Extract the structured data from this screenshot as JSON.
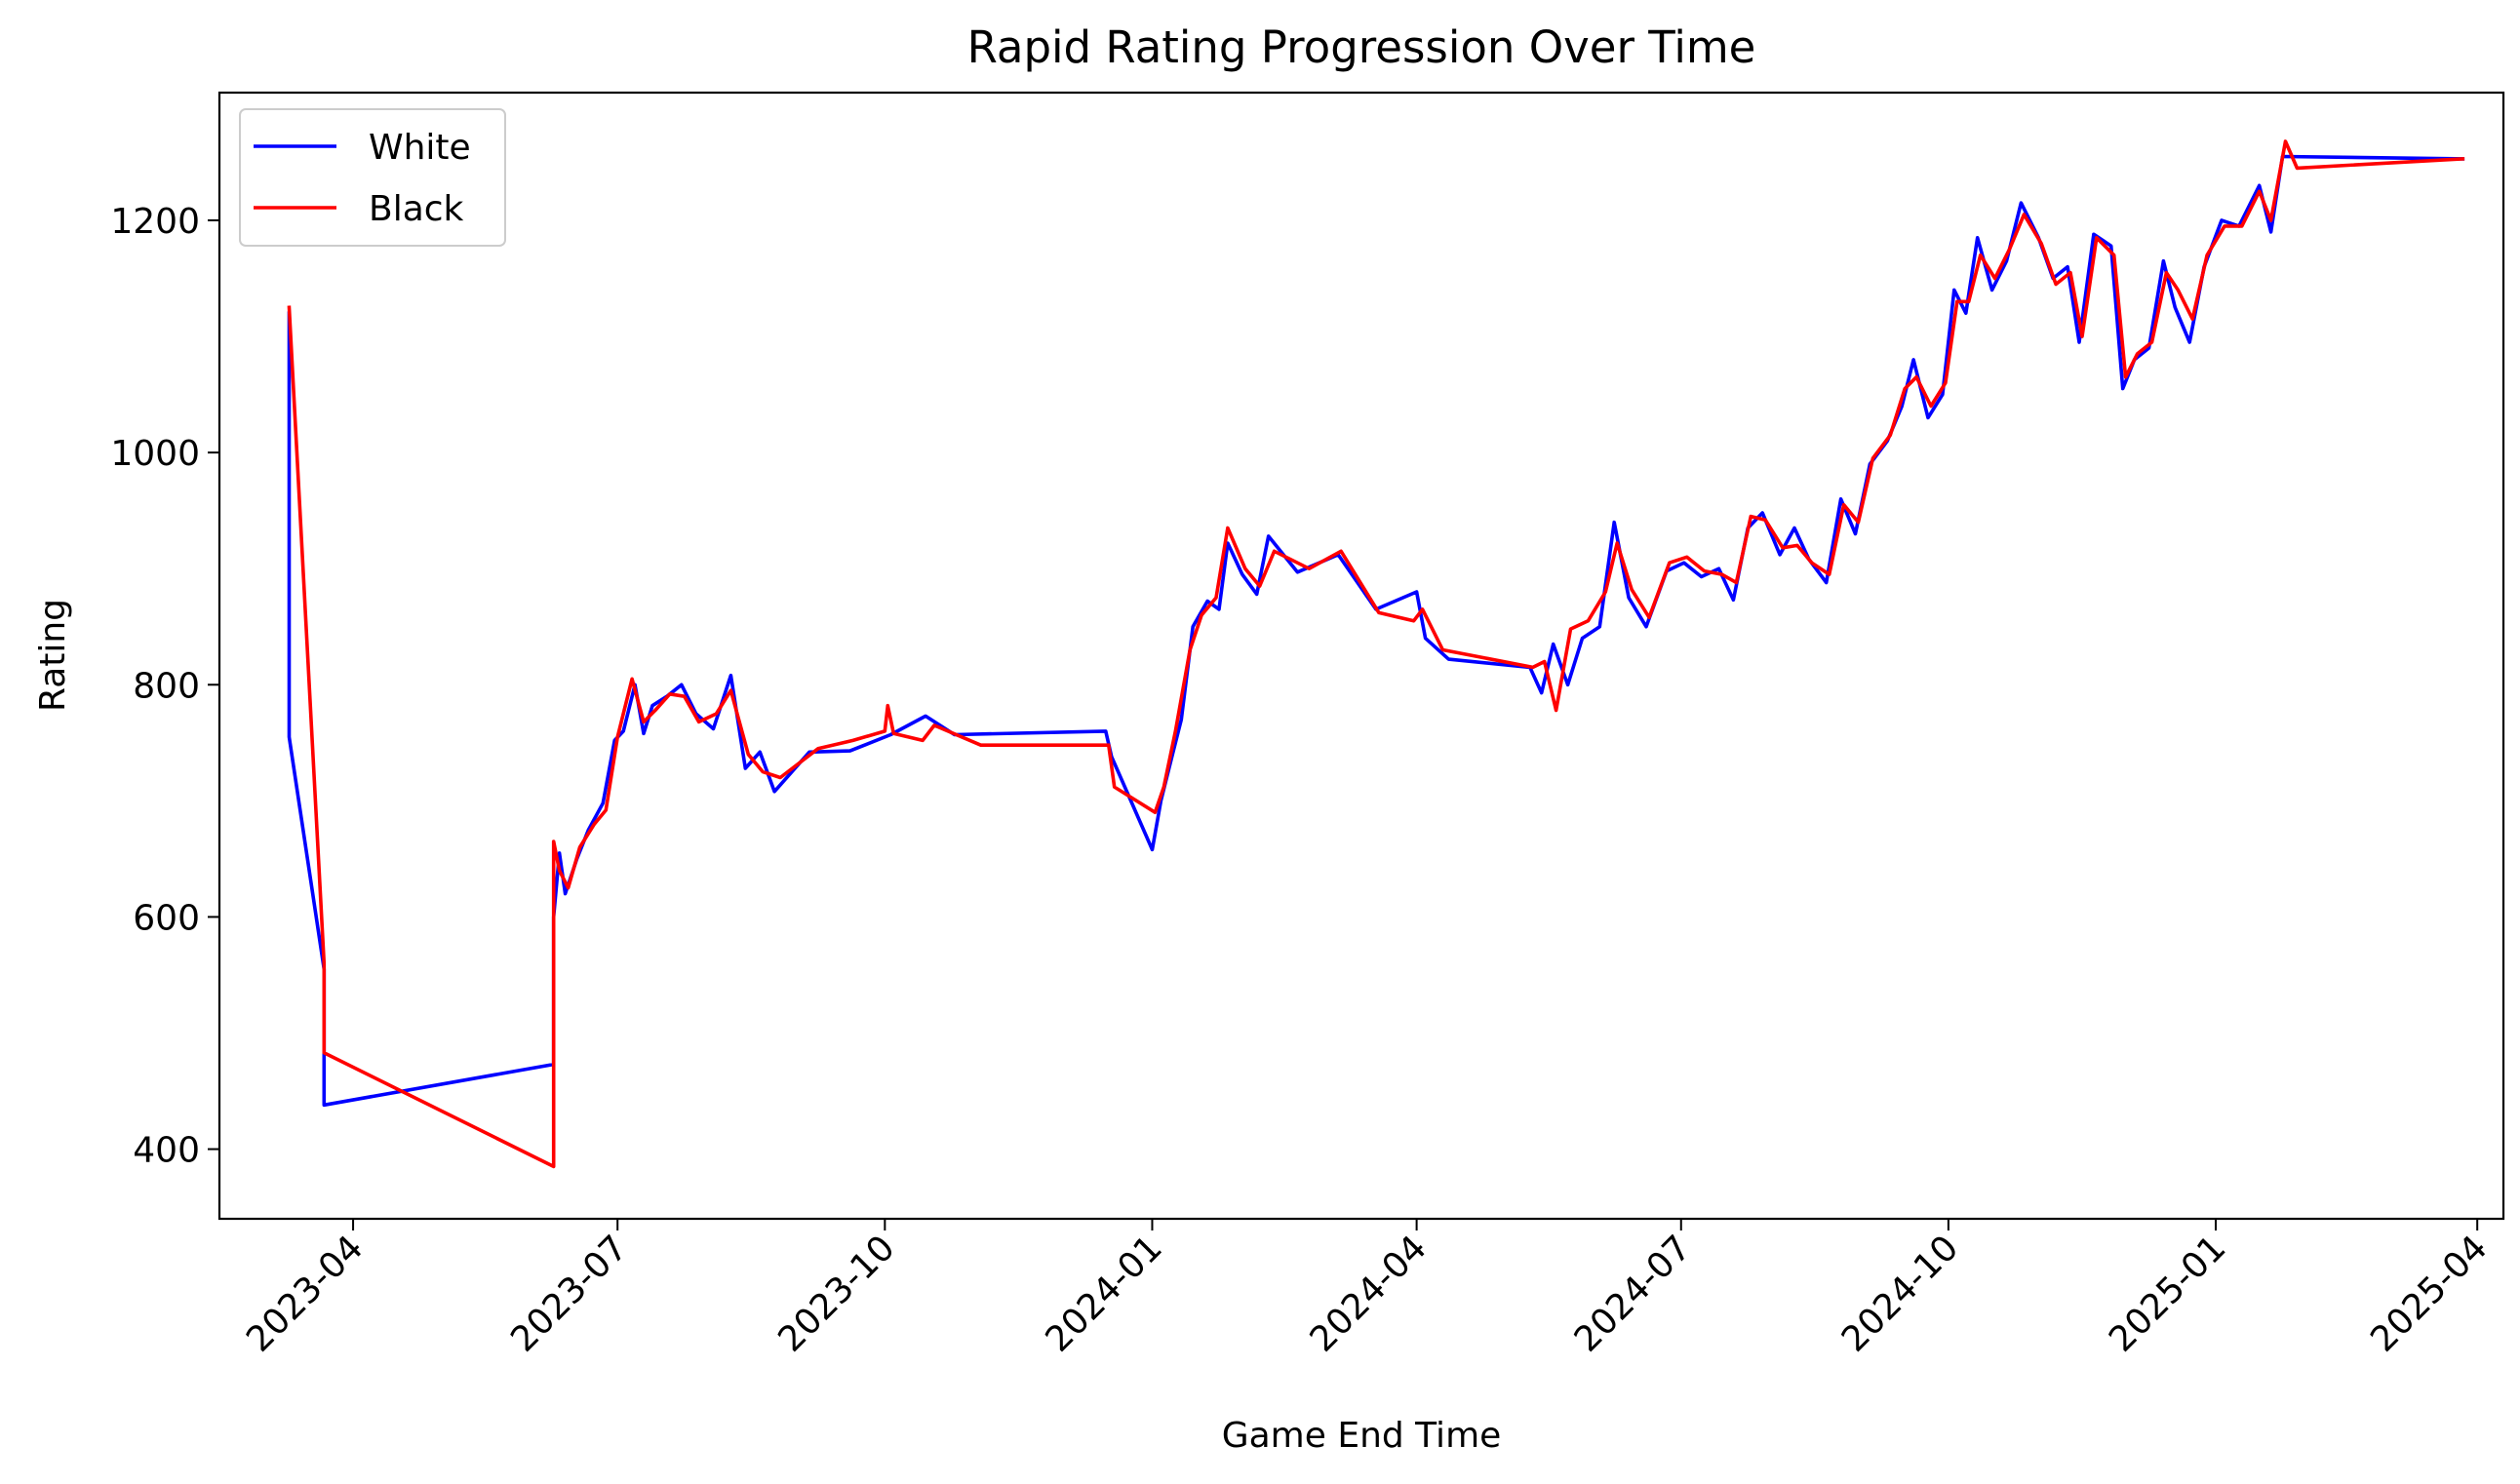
{
  "chart_data": {
    "type": "line",
    "title": "Rapid Rating Progression Over Time",
    "xlabel": "Game End Time",
    "ylabel": "Rating",
    "x_ticks": [
      "2023-04",
      "2023-07",
      "2023-10",
      "2024-01",
      "2024-04",
      "2024-07",
      "2024-10",
      "2025-01",
      "2025-04"
    ],
    "y_ticks": [
      400,
      600,
      800,
      1000,
      1200
    ],
    "xlim": [
      "2023-02-14",
      "2025-04-10"
    ],
    "ylim": [
      340,
      1310
    ],
    "grid": false,
    "legend": "upper left",
    "series": [
      {
        "name": "White",
        "color": "#0000ff",
        "points": [
          [
            "2023-03-10",
            1120
          ],
          [
            "2023-03-10",
            755
          ],
          [
            "2023-03-22",
            555
          ],
          [
            "2023-03-22",
            438
          ],
          [
            "2023-06-09",
            473
          ],
          [
            "2023-06-09",
            600
          ],
          [
            "2023-06-11",
            655
          ],
          [
            "2023-06-13",
            620
          ],
          [
            "2023-06-17",
            650
          ],
          [
            "2023-06-21",
            675
          ],
          [
            "2023-06-26",
            698
          ],
          [
            "2023-06-30",
            752
          ],
          [
            "2023-07-03",
            760
          ],
          [
            "2023-07-07",
            800
          ],
          [
            "2023-07-10",
            758
          ],
          [
            "2023-07-13",
            782
          ],
          [
            "2023-07-18",
            790
          ],
          [
            "2023-07-23",
            800
          ],
          [
            "2023-07-28",
            775
          ],
          [
            "2023-08-03",
            762
          ],
          [
            "2023-08-09",
            808
          ],
          [
            "2023-08-14",
            728
          ],
          [
            "2023-08-19",
            742
          ],
          [
            "2023-08-24",
            708
          ],
          [
            "2023-09-05",
            742
          ],
          [
            "2023-09-19",
            743
          ],
          [
            "2023-10-03",
            757
          ],
          [
            "2023-10-15",
            773
          ],
          [
            "2023-10-25",
            757
          ],
          [
            "2023-12-16",
            760
          ],
          [
            "2023-12-18",
            738
          ],
          [
            "2024-01-01",
            658
          ],
          [
            "2024-01-04",
            700
          ],
          [
            "2024-01-08",
            740
          ],
          [
            "2024-01-11",
            770
          ],
          [
            "2024-01-15",
            850
          ],
          [
            "2024-01-20",
            872
          ],
          [
            "2024-01-24",
            865
          ],
          [
            "2024-01-27",
            922
          ],
          [
            "2024-02-01",
            895
          ],
          [
            "2024-02-06",
            878
          ],
          [
            "2024-02-10",
            928
          ],
          [
            "2024-02-20",
            897
          ],
          [
            "2024-03-05",
            912
          ],
          [
            "2024-03-18",
            865
          ],
          [
            "2024-04-01",
            880
          ],
          [
            "2024-04-04",
            840
          ],
          [
            "2024-04-12",
            822
          ],
          [
            "2024-05-10",
            815
          ],
          [
            "2024-05-14",
            793
          ],
          [
            "2024-05-18",
            835
          ],
          [
            "2024-05-23",
            800
          ],
          [
            "2024-05-28",
            840
          ],
          [
            "2024-06-03",
            850
          ],
          [
            "2024-06-08",
            940
          ],
          [
            "2024-06-13",
            875
          ],
          [
            "2024-06-19",
            850
          ],
          [
            "2024-06-26",
            898
          ],
          [
            "2024-07-02",
            905
          ],
          [
            "2024-07-08",
            893
          ],
          [
            "2024-07-14",
            900
          ],
          [
            "2024-07-19",
            873
          ],
          [
            "2024-07-24",
            935
          ],
          [
            "2024-07-29",
            948
          ],
          [
            "2024-08-04",
            912
          ],
          [
            "2024-08-09",
            935
          ],
          [
            "2024-08-14",
            908
          ],
          [
            "2024-08-20",
            888
          ],
          [
            "2024-08-25",
            960
          ],
          [
            "2024-08-30",
            930
          ],
          [
            "2024-09-04",
            990
          ],
          [
            "2024-09-10",
            1010
          ],
          [
            "2024-09-15",
            1040
          ],
          [
            "2024-09-19",
            1080
          ],
          [
            "2024-09-24",
            1030
          ],
          [
            "2024-09-29",
            1050
          ],
          [
            "2024-10-03",
            1140
          ],
          [
            "2024-10-07",
            1120
          ],
          [
            "2024-10-11",
            1185
          ],
          [
            "2024-10-16",
            1140
          ],
          [
            "2024-10-21",
            1165
          ],
          [
            "2024-10-26",
            1215
          ],
          [
            "2024-11-01",
            1185
          ],
          [
            "2024-11-06",
            1150
          ],
          [
            "2024-11-11",
            1160
          ],
          [
            "2024-11-15",
            1095
          ],
          [
            "2024-11-20",
            1188
          ],
          [
            "2024-11-26",
            1178
          ],
          [
            "2024-11-30",
            1055
          ],
          [
            "2024-12-04",
            1080
          ],
          [
            "2024-12-09",
            1090
          ],
          [
            "2024-12-14",
            1165
          ],
          [
            "2024-12-18",
            1125
          ],
          [
            "2024-12-23",
            1095
          ],
          [
            "2024-12-28",
            1160
          ],
          [
            "2025-01-03",
            1200
          ],
          [
            "2025-01-09",
            1195
          ],
          [
            "2025-01-16",
            1230
          ],
          [
            "2025-01-20",
            1190
          ],
          [
            "2025-01-24",
            1255
          ],
          [
            "2025-03-27",
            1253
          ]
        ]
      },
      {
        "name": "Black",
        "color": "#ff0000",
        "points": [
          [
            "2023-03-10",
            1125
          ],
          [
            "2023-03-22",
            560
          ],
          [
            "2023-03-22",
            483
          ],
          [
            "2023-06-09",
            385
          ],
          [
            "2023-06-09",
            665
          ],
          [
            "2023-06-11",
            640
          ],
          [
            "2023-06-14",
            625
          ],
          [
            "2023-06-18",
            660
          ],
          [
            "2023-06-23",
            680
          ],
          [
            "2023-06-27",
            692
          ],
          [
            "2023-07-01",
            755
          ],
          [
            "2023-07-06",
            805
          ],
          [
            "2023-07-10",
            768
          ],
          [
            "2023-07-14",
            778
          ],
          [
            "2023-07-19",
            792
          ],
          [
            "2023-07-24",
            790
          ],
          [
            "2023-07-29",
            768
          ],
          [
            "2023-08-04",
            775
          ],
          [
            "2023-08-09",
            795
          ],
          [
            "2023-08-15",
            740
          ],
          [
            "2023-08-20",
            725
          ],
          [
            "2023-08-26",
            720
          ],
          [
            "2023-09-08",
            745
          ],
          [
            "2023-09-20",
            752
          ],
          [
            "2023-10-01",
            760
          ],
          [
            "2023-10-02",
            782
          ],
          [
            "2023-10-04",
            758
          ],
          [
            "2023-10-14",
            752
          ],
          [
            "2023-10-18",
            765
          ],
          [
            "2023-11-03",
            748
          ],
          [
            "2023-12-17",
            748
          ],
          [
            "2023-12-19",
            712
          ],
          [
            "2024-01-02",
            690
          ],
          [
            "2024-01-05",
            712
          ],
          [
            "2024-01-09",
            760
          ],
          [
            "2024-01-14",
            830
          ],
          [
            "2024-01-18",
            860
          ],
          [
            "2024-01-23",
            875
          ],
          [
            "2024-01-27",
            935
          ],
          [
            "2024-02-02",
            900
          ],
          [
            "2024-02-07",
            885
          ],
          [
            "2024-02-12",
            915
          ],
          [
            "2024-02-24",
            900
          ],
          [
            "2024-03-06",
            915
          ],
          [
            "2024-03-19",
            862
          ],
          [
            "2024-03-31",
            855
          ],
          [
            "2024-04-03",
            865
          ],
          [
            "2024-04-10",
            830
          ],
          [
            "2024-05-11",
            815
          ],
          [
            "2024-05-15",
            820
          ],
          [
            "2024-05-19",
            778
          ],
          [
            "2024-05-24",
            848
          ],
          [
            "2024-05-30",
            855
          ],
          [
            "2024-06-05",
            880
          ],
          [
            "2024-06-09",
            922
          ],
          [
            "2024-06-14",
            882
          ],
          [
            "2024-06-20",
            858
          ],
          [
            "2024-06-27",
            905
          ],
          [
            "2024-07-03",
            910
          ],
          [
            "2024-07-09",
            898
          ],
          [
            "2024-07-15",
            895
          ],
          [
            "2024-07-20",
            888
          ],
          [
            "2024-07-25",
            945
          ],
          [
            "2024-07-30",
            942
          ],
          [
            "2024-08-05",
            918
          ],
          [
            "2024-08-10",
            920
          ],
          [
            "2024-08-15",
            905
          ],
          [
            "2024-08-21",
            895
          ],
          [
            "2024-08-26",
            955
          ],
          [
            "2024-08-31",
            940
          ],
          [
            "2024-09-05",
            995
          ],
          [
            "2024-09-11",
            1015
          ],
          [
            "2024-09-16",
            1055
          ],
          [
            "2024-09-20",
            1065
          ],
          [
            "2024-09-25",
            1040
          ],
          [
            "2024-09-30",
            1060
          ],
          [
            "2024-10-04",
            1130
          ],
          [
            "2024-10-08",
            1130
          ],
          [
            "2024-10-12",
            1170
          ],
          [
            "2024-10-17",
            1150
          ],
          [
            "2024-10-22",
            1175
          ],
          [
            "2024-10-27",
            1205
          ],
          [
            "2024-11-02",
            1180
          ],
          [
            "2024-11-07",
            1145
          ],
          [
            "2024-11-12",
            1155
          ],
          [
            "2024-11-16",
            1100
          ],
          [
            "2024-11-21",
            1185
          ],
          [
            "2024-11-27",
            1170
          ],
          [
            "2024-12-01",
            1065
          ],
          [
            "2024-12-05",
            1085
          ],
          [
            "2024-12-10",
            1095
          ],
          [
            "2024-12-15",
            1155
          ],
          [
            "2024-12-19",
            1140
          ],
          [
            "2024-12-24",
            1115
          ],
          [
            "2024-12-29",
            1170
          ],
          [
            "2025-01-04",
            1195
          ],
          [
            "2025-01-10",
            1195
          ],
          [
            "2025-01-16",
            1225
          ],
          [
            "2025-01-20",
            1200
          ],
          [
            "2025-01-25",
            1268
          ],
          [
            "2025-01-29",
            1245
          ],
          [
            "2025-03-27",
            1253
          ]
        ]
      }
    ]
  }
}
